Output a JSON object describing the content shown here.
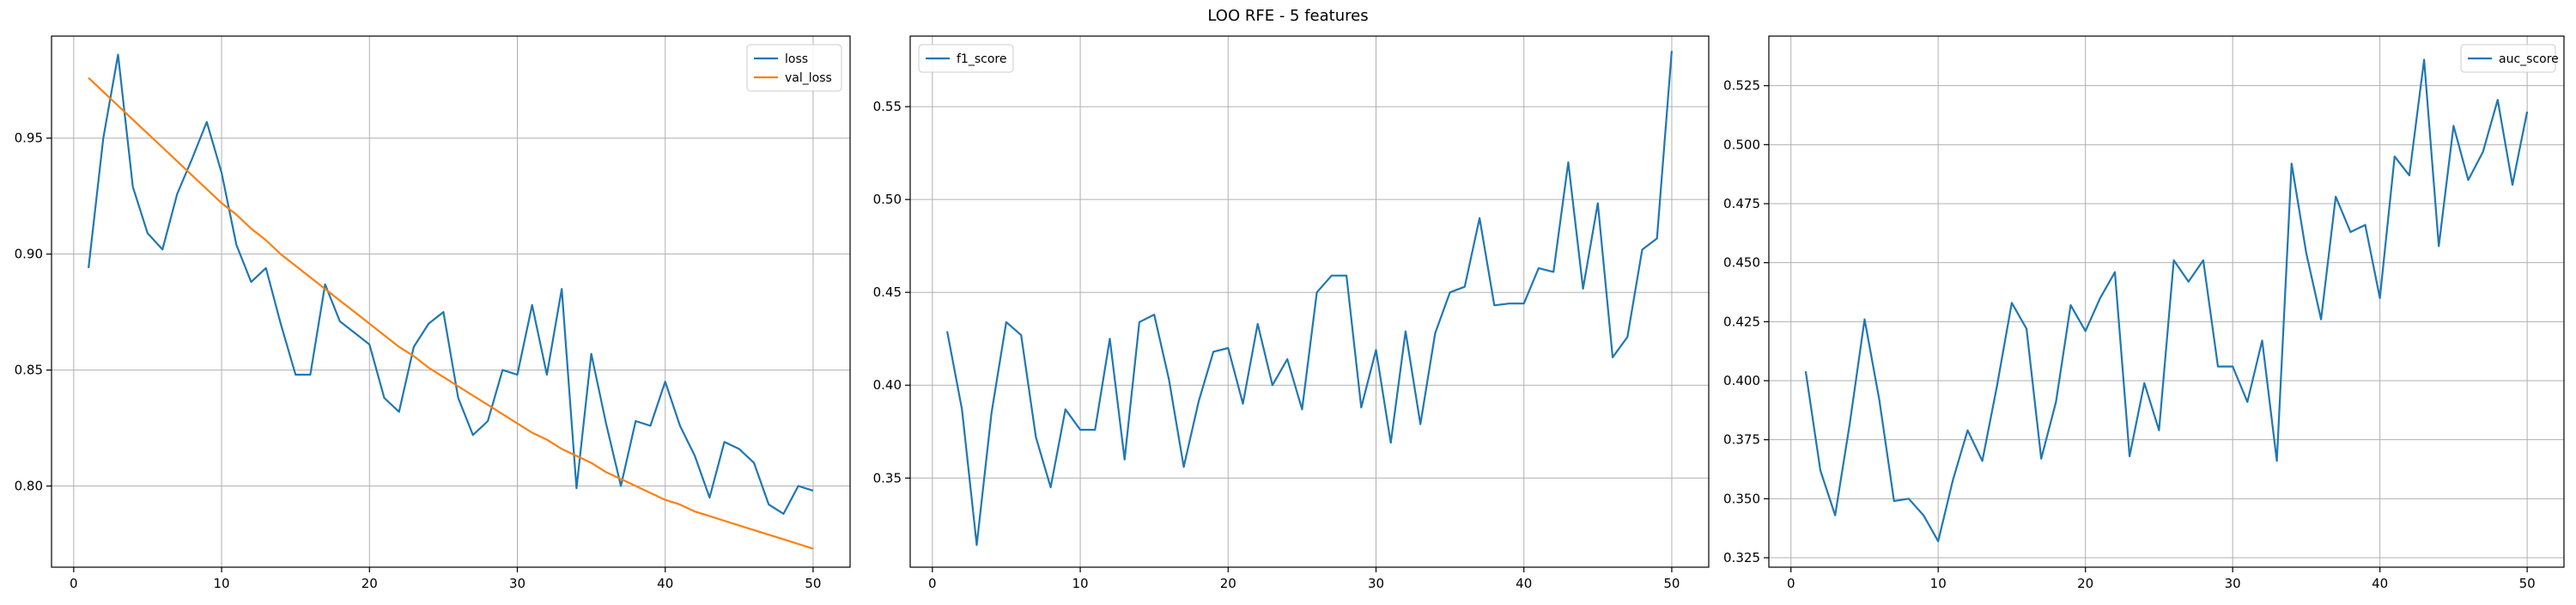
{
  "figure": {
    "suptitle": "LOO RFE - 5 features"
  },
  "chart_data": [
    {
      "type": "line",
      "title": "",
      "xlabel": "",
      "ylabel": "",
      "xlim": [
        -1.5,
        52.5
      ],
      "ylim": [
        0.765,
        0.994
      ],
      "xticks": [
        0,
        10,
        20,
        30,
        40,
        50
      ],
      "yticks": [
        0.8,
        0.85,
        0.9,
        0.95
      ],
      "ytick_labels": [
        "0.80",
        "0.85",
        "0.90",
        "0.95"
      ],
      "grid": true,
      "legend_position": "top-right",
      "series": [
        {
          "name": "loss",
          "color": "#1f77b4",
          "x": [
            1,
            2,
            3,
            4,
            5,
            6,
            7,
            8,
            9,
            10,
            11,
            12,
            13,
            14,
            15,
            16,
            17,
            18,
            19,
            20,
            21,
            22,
            23,
            24,
            25,
            26,
            27,
            28,
            29,
            30,
            31,
            32,
            33,
            34,
            35,
            36,
            37,
            38,
            39,
            40,
            41,
            42,
            43,
            44,
            45,
            46,
            47,
            48,
            49,
            50
          ],
          "y": [
            0.894,
            0.95,
            0.986,
            0.929,
            0.909,
            0.902,
            0.926,
            0.941,
            0.957,
            0.935,
            0.904,
            0.888,
            0.894,
            0.87,
            0.848,
            0.848,
            0.887,
            0.871,
            0.866,
            0.861,
            0.838,
            0.832,
            0.86,
            0.87,
            0.875,
            0.838,
            0.822,
            0.828,
            0.85,
            0.848,
            0.878,
            0.848,
            0.885,
            0.799,
            0.857,
            0.827,
            0.8,
            0.828,
            0.826,
            0.845,
            0.826,
            0.813,
            0.795,
            0.819,
            0.816,
            0.81,
            0.792,
            0.788,
            0.8,
            0.798
          ]
        },
        {
          "name": "val_loss",
          "color": "#ff7f0e",
          "x": [
            1,
            2,
            3,
            4,
            5,
            6,
            7,
            8,
            9,
            10,
            11,
            12,
            13,
            14,
            15,
            16,
            17,
            18,
            19,
            20,
            21,
            22,
            23,
            24,
            25,
            26,
            27,
            28,
            29,
            30,
            31,
            32,
            33,
            34,
            35,
            36,
            37,
            38,
            39,
            40,
            41,
            42,
            43,
            44,
            45,
            46,
            47,
            48,
            49,
            50
          ],
          "y": [
            0.976,
            0.97,
            0.964,
            0.958,
            0.952,
            0.946,
            0.94,
            0.934,
            0.928,
            0.922,
            0.917,
            0.911,
            0.906,
            0.9,
            0.895,
            0.89,
            0.885,
            0.88,
            0.875,
            0.87,
            0.865,
            0.86,
            0.856,
            0.851,
            0.847,
            0.843,
            0.839,
            0.835,
            0.831,
            0.827,
            0.823,
            0.82,
            0.816,
            0.813,
            0.81,
            0.806,
            0.803,
            0.8,
            0.797,
            0.794,
            0.792,
            0.789,
            0.787,
            0.785,
            0.783,
            0.781,
            0.779,
            0.777,
            0.775,
            0.773
          ]
        }
      ]
    },
    {
      "type": "line",
      "title": "",
      "xlabel": "",
      "ylabel": "",
      "xlim": [
        -1.5,
        52.5
      ],
      "ylim": [
        0.302,
        0.588
      ],
      "xticks": [
        0,
        10,
        20,
        30,
        40,
        50
      ],
      "yticks": [
        0.35,
        0.4,
        0.45,
        0.5,
        0.55
      ],
      "ytick_labels": [
        "0.35",
        "0.40",
        "0.45",
        "0.50",
        "0.55"
      ],
      "grid": true,
      "legend_position": "top-left",
      "series": [
        {
          "name": "f1_score",
          "color": "#1f77b4",
          "x": [
            1,
            2,
            3,
            4,
            5,
            6,
            7,
            8,
            9,
            10,
            11,
            12,
            13,
            14,
            15,
            16,
            17,
            18,
            19,
            20,
            21,
            22,
            23,
            24,
            25,
            26,
            27,
            28,
            29,
            30,
            31,
            32,
            33,
            34,
            35,
            36,
            37,
            38,
            39,
            40,
            41,
            42,
            43,
            44,
            45,
            46,
            47,
            48,
            49,
            50
          ],
          "y": [
            0.429,
            0.387,
            0.314,
            0.385,
            0.434,
            0.427,
            0.372,
            0.345,
            0.387,
            0.376,
            0.376,
            0.425,
            0.36,
            0.434,
            0.438,
            0.403,
            0.356,
            0.391,
            0.418,
            0.42,
            0.39,
            0.433,
            0.4,
            0.414,
            0.387,
            0.45,
            0.459,
            0.459,
            0.388,
            0.419,
            0.369,
            0.429,
            0.379,
            0.428,
            0.45,
            0.453,
            0.49,
            0.443,
            0.444,
            0.444,
            0.463,
            0.461,
            0.52,
            0.452,
            0.498,
            0.415,
            0.426,
            0.473,
            0.479,
            0.58
          ]
        }
      ]
    },
    {
      "type": "line",
      "title": "",
      "xlabel": "",
      "ylabel": "",
      "xlim": [
        -1.5,
        52.5
      ],
      "ylim": [
        0.321,
        0.546
      ],
      "xticks": [
        0,
        10,
        20,
        30,
        40,
        50
      ],
      "yticks": [
        0.325,
        0.35,
        0.375,
        0.4,
        0.425,
        0.45,
        0.475,
        0.5,
        0.525
      ],
      "ytick_labels": [
        "0.325",
        "0.350",
        "0.375",
        "0.400",
        "0.425",
        "0.450",
        "0.475",
        "0.500",
        "0.525"
      ],
      "grid": true,
      "legend_position": "top-right",
      "series": [
        {
          "name": "auc_score",
          "color": "#1f77b4",
          "x": [
            1,
            2,
            3,
            4,
            5,
            6,
            7,
            8,
            9,
            10,
            11,
            12,
            13,
            14,
            15,
            16,
            17,
            18,
            19,
            20,
            21,
            22,
            23,
            24,
            25,
            26,
            27,
            28,
            29,
            30,
            31,
            32,
            33,
            34,
            35,
            36,
            37,
            38,
            39,
            40,
            41,
            42,
            43,
            44,
            45,
            46,
            47,
            48,
            49,
            50
          ],
          "y": [
            0.404,
            0.362,
            0.343,
            0.382,
            0.426,
            0.392,
            0.349,
            0.35,
            0.343,
            0.332,
            0.358,
            0.379,
            0.366,
            0.398,
            0.433,
            0.422,
            0.367,
            0.391,
            0.432,
            0.421,
            0.435,
            0.446,
            0.368,
            0.399,
            0.379,
            0.451,
            0.442,
            0.451,
            0.406,
            0.406,
            0.391,
            0.417,
            0.366,
            0.492,
            0.454,
            0.426,
            0.478,
            0.463,
            0.466,
            0.435,
            0.495,
            0.487,
            0.536,
            0.457,
            0.508,
            0.485,
            0.497,
            0.519,
            0.483,
            0.514
          ]
        }
      ]
    }
  ]
}
